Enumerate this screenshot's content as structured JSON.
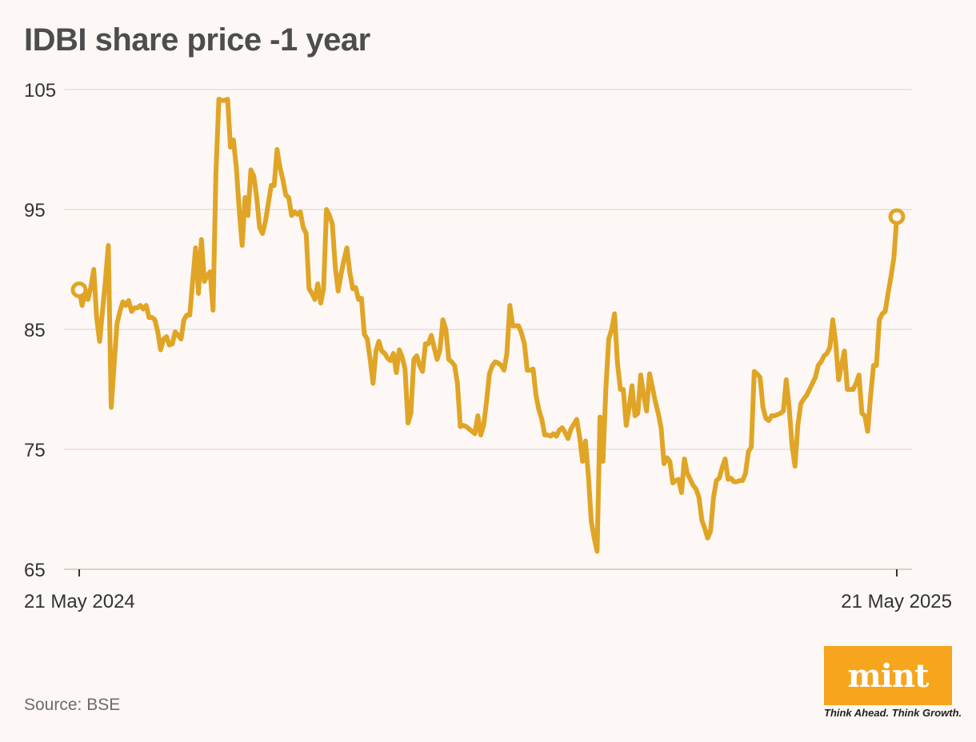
{
  "title": "IDBI share price -1 year",
  "source": "Source: BSE",
  "logo": {
    "text": "mint",
    "tagline": "Think Ahead. Think Growth.",
    "color": "#f7a51d"
  },
  "colors": {
    "line": "#e0a526",
    "grid": "#e4dfdc",
    "background": "#fdf8f5"
  },
  "chart_data": {
    "type": "line",
    "title": "IDBI share price -1 year",
    "xlabel": "",
    "ylabel": "",
    "x_start": "21 May 2024",
    "x_end": "21 May 2025",
    "x_tick_labels": [
      "21 May 2024",
      "21 May 2025"
    ],
    "y_ticks": [
      65,
      75,
      85,
      95,
      105
    ],
    "ylim": [
      65,
      105
    ],
    "grid": true,
    "series": [
      {
        "values": [
          88.3,
          87.0,
          88.0,
          87.5,
          88.5,
          90.0,
          86.0,
          84.0,
          86.5,
          89.0,
          92.0,
          78.5,
          82.0,
          85.5,
          86.5,
          87.3,
          87.0,
          87.4,
          86.5,
          86.8,
          86.8,
          87.0,
          86.7,
          87.0,
          86.0,
          86.0,
          85.8,
          84.8,
          83.3,
          84.2,
          84.4,
          83.7,
          83.8,
          84.8,
          84.5,
          84.2,
          85.8,
          86.2,
          86.2,
          89.0,
          91.8,
          88.0,
          92.5,
          89.0,
          89.5,
          89.8,
          86.6,
          98.0,
          104.2,
          104.1,
          104.1,
          104.2,
          100.2,
          100.8,
          98.5,
          95.0,
          92.0,
          96.0,
          94.5,
          98.3,
          97.8,
          96.0,
          93.5,
          93.0,
          94.0,
          95.5,
          97.0,
          97.0,
          100.0,
          98.5,
          97.5,
          96.2,
          96.0,
          94.5,
          94.8,
          94.6,
          94.8,
          93.5,
          93.0,
          88.4,
          88.0,
          87.5,
          88.8,
          87.2,
          88.4,
          95.0,
          94.5,
          93.8,
          90.2,
          88.2,
          89.6,
          90.8,
          91.8,
          89.8,
          88.4,
          88.5,
          87.5,
          87.6,
          84.6,
          84.2,
          82.5,
          80.5,
          83.2,
          84.0,
          83.2,
          83.0,
          82.6,
          82.4,
          83.0,
          81.4,
          83.3,
          82.7,
          81.7,
          77.2,
          78.0,
          82.5,
          82.8,
          82.0,
          81.5,
          83.8,
          83.8,
          84.5,
          83.5,
          82.5,
          83.3,
          85.8,
          85.0,
          82.5,
          82.3,
          82.0,
          80.5,
          76.9,
          77.0,
          76.9,
          76.7,
          76.5,
          76.3,
          77.8,
          76.2,
          77.0,
          79.0,
          81.3,
          82.0,
          82.3,
          82.2,
          82.0,
          81.6,
          83.0,
          87.0,
          85.3,
          85.3,
          85.3,
          84.7,
          83.8,
          81.6,
          81.6,
          81.7,
          79.5,
          78.3,
          77.5,
          76.2,
          76.2,
          76.1,
          76.3,
          76.1,
          76.6,
          76.8,
          76.4,
          75.9,
          76.7,
          77.1,
          77.5,
          76.0,
          74.0,
          75.7,
          72.8,
          69.0,
          67.6,
          66.5,
          77.7,
          74.0,
          80.0,
          84.2,
          85.0,
          86.3,
          82.2,
          80.0,
          80.0,
          77.0,
          78.5,
          80.3,
          77.8,
          78.0,
          81.2,
          79.5,
          78.2,
          81.3,
          80.2,
          79.0,
          78.0,
          76.8,
          73.8,
          74.3,
          74.0,
          72.2,
          72.4,
          72.5,
          71.4,
          74.2,
          73.0,
          72.5,
          72.0,
          71.7,
          71.0,
          69.1,
          68.4,
          67.6,
          68.2,
          71.0,
          72.4,
          72.6,
          73.5,
          74.2,
          72.5,
          72.6,
          72.3,
          72.3,
          72.4,
          72.4,
          73.0,
          74.8,
          75.2,
          81.5,
          81.3,
          81.0,
          78.5,
          77.6,
          77.4,
          77.8,
          77.8,
          77.9,
          78.0,
          78.2,
          80.8,
          78.5,
          75.3,
          73.6,
          77.0,
          78.8,
          79.2,
          79.5,
          80.0,
          80.5,
          81.0,
          82.0,
          82.3,
          82.8,
          83.0,
          83.5,
          85.8,
          83.9,
          80.8,
          82.0,
          83.2,
          80.0,
          80.0,
          80.0,
          80.5,
          81.2,
          78.0,
          77.8,
          76.5,
          79.5,
          82.0,
          82.0,
          85.8,
          86.3,
          86.5,
          88.0,
          89.4,
          91.0,
          94.4
        ]
      }
    ]
  }
}
